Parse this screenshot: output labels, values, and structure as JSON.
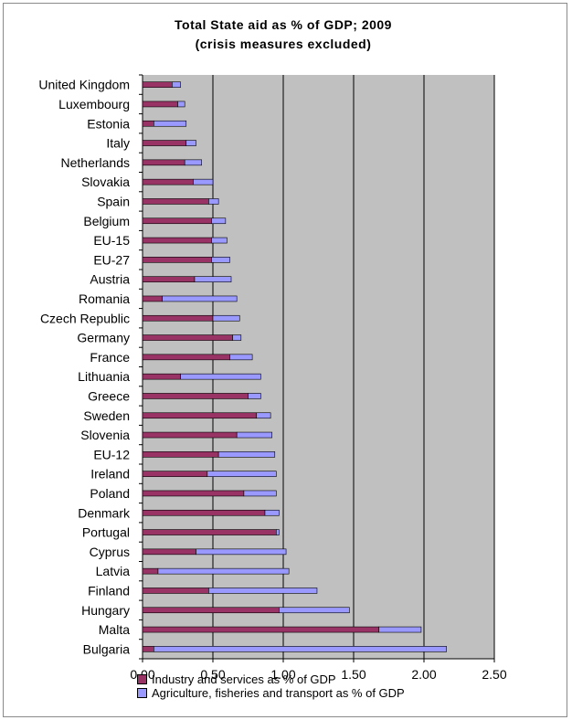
{
  "chart_data": {
    "type": "bar",
    "orientation": "horizontal",
    "stacked": true,
    "title": "Total State aid as % of GDP; 2009",
    "subtitle": "(crisis measures excluded)",
    "categories": [
      "United Kingdom",
      "Luxembourg",
      "Estonia",
      "Italy",
      "Netherlands",
      "Slovakia",
      "Spain",
      "Belgium",
      "EU-15",
      "EU-27",
      "Austria",
      "Romania",
      "Czech Republic",
      "Germany",
      "France",
      "Lithuania",
      "Greece",
      "Sweden",
      "Slovenia",
      "EU-12",
      "Ireland",
      "Poland",
      "Denmark",
      "Portugal",
      "Cyprus",
      "Latvia",
      "Finland",
      "Hungary",
      "Malta",
      "Bulgaria"
    ],
    "series": [
      {
        "name": "Industry and services as % of GDP",
        "color": "#993366",
        "values": [
          0.21,
          0.25,
          0.08,
          0.31,
          0.3,
          0.36,
          0.47,
          0.49,
          0.49,
          0.49,
          0.37,
          0.14,
          0.5,
          0.64,
          0.62,
          0.27,
          0.75,
          0.81,
          0.67,
          0.54,
          0.46,
          0.72,
          0.87,
          0.95,
          0.38,
          0.11,
          0.47,
          0.97,
          1.68,
          0.08
        ]
      },
      {
        "name": "Agriculture, fisheries and transport as % of GDP",
        "color": "#9999ff",
        "values": [
          0.06,
          0.05,
          0.23,
          0.07,
          0.12,
          0.14,
          0.07,
          0.1,
          0.11,
          0.13,
          0.26,
          0.53,
          0.19,
          0.06,
          0.16,
          0.57,
          0.09,
          0.1,
          0.25,
          0.4,
          0.49,
          0.23,
          0.1,
          0.02,
          0.64,
          0.93,
          0.77,
          0.5,
          0.3,
          2.08
        ]
      }
    ],
    "xlim": [
      0,
      2.5
    ],
    "xticks": [
      "0.00",
      "0.50",
      "1.00",
      "1.50",
      "2.00",
      "2.50"
    ],
    "grid": true,
    "legend_position": "bottom"
  }
}
